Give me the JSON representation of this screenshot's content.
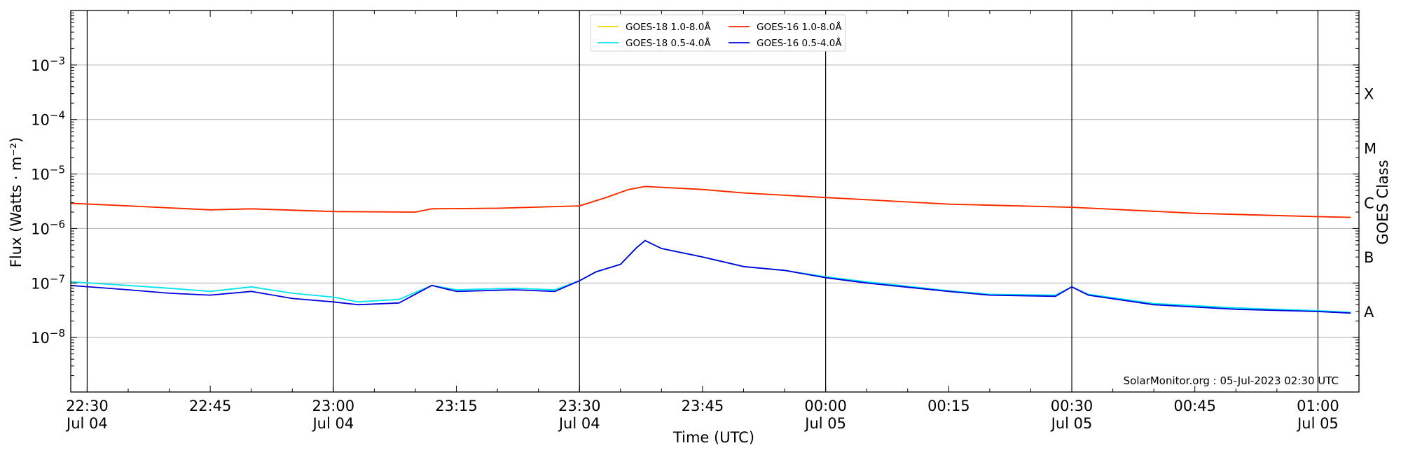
{
  "chart_data": {
    "type": "line",
    "xlabel": "Time (UTC)",
    "ylabel": "Flux (Watts · m⁻²)",
    "y2label": "GOES Class",
    "yscale": "log",
    "ylim": [
      1e-09,
      0.01
    ],
    "xlim_minutes_since_2230_jul04": [
      -2,
      155
    ],
    "ytick_labels": [
      {
        "exp": -3,
        "label_base": "10",
        "label_exp": "−3"
      },
      {
        "exp": -4,
        "label_base": "10",
        "label_exp": "−4"
      },
      {
        "exp": -5,
        "label_base": "10",
        "label_exp": "−5"
      },
      {
        "exp": -6,
        "label_base": "10",
        "label_exp": "−6"
      },
      {
        "exp": -7,
        "label_base": "10",
        "label_exp": "−7"
      },
      {
        "exp": -8,
        "label_base": "10",
        "label_exp": "−8"
      }
    ],
    "xtick_labels": [
      {
        "t": "2023-07-04 22:30",
        "time": "22:30",
        "date": "Jul 04"
      },
      {
        "t": "2023-07-04 22:45",
        "time": "22:45",
        "date": ""
      },
      {
        "t": "2023-07-04 23:00",
        "time": "23:00",
        "date": "Jul 04"
      },
      {
        "t": "2023-07-04 23:15",
        "time": "23:15",
        "date": ""
      },
      {
        "t": "2023-07-04 23:30",
        "time": "23:30",
        "date": "Jul 04"
      },
      {
        "t": "2023-07-04 23:45",
        "time": "23:45",
        "date": ""
      },
      {
        "t": "2023-07-05 00:00",
        "time": "00:00",
        "date": "Jul 05"
      },
      {
        "t": "2023-07-05 00:15",
        "time": "00:15",
        "date": ""
      },
      {
        "t": "2023-07-05 00:30",
        "time": "00:30",
        "date": "Jul 05"
      },
      {
        "t": "2023-07-05 00:45",
        "time": "00:45",
        "date": ""
      },
      {
        "t": "2023-07-05 01:00",
        "time": "01:00",
        "date": "Jul 05"
      }
    ],
    "vertical_lines": [
      "2023-07-04 22:30",
      "2023-07-04 23:00",
      "2023-07-04 23:30",
      "2023-07-05 00:00",
      "2023-07-05 00:30",
      "2023-07-05 01:00"
    ],
    "goes_classes": [
      {
        "label": "X",
        "flux": 0.0003
      },
      {
        "label": "M",
        "flux": 3e-05
      },
      {
        "label": "C",
        "flux": 3e-06
      },
      {
        "label": "B",
        "flux": 3e-07
      },
      {
        "label": "A",
        "flux": 3e-08
      }
    ],
    "annotation": "SolarMonitor.org : 05-Jul-2023 02:30 UTC",
    "legend_position": "top-center",
    "legend": [
      {
        "name": "GOES-18 1.0-8.0Å",
        "color": "#ffd700"
      },
      {
        "name": "GOES-18 0.5-4.0Å",
        "color": "#00e5ee"
      },
      {
        "name": "GOES-16 1.0-8.0Å",
        "color": "#ff2200"
      },
      {
        "name": "GOES-16 0.5-4.0Å",
        "color": "#0000dd"
      }
    ],
    "grid": "horizontal at decades",
    "series": [
      {
        "name": "GOES-18 1.0-8.0Å",
        "color": "#ffd700",
        "x": [
          "2023-07-04 22:28",
          "2023-07-04 22:35",
          "2023-07-04 22:45",
          "2023-07-04 22:50",
          "2023-07-04 23:00",
          "2023-07-04 23:10",
          "2023-07-04 23:12",
          "2023-07-04 23:20",
          "2023-07-04 23:30",
          "2023-07-04 23:33",
          "2023-07-04 23:36",
          "2023-07-04 23:38",
          "2023-07-04 23:45",
          "2023-07-04 23:50",
          "2023-07-05 00:00",
          "2023-07-05 00:15",
          "2023-07-05 00:30",
          "2023-07-05 00:45",
          "2023-07-05 01:00",
          "2023-07-05 01:04"
        ],
        "y": [
          2.9e-06,
          2.6e-06,
          2.2e-06,
          2.3e-06,
          2.05e-06,
          2e-06,
          2.3e-06,
          2.35e-06,
          2.6e-06,
          3.6e-06,
          5.2e-06,
          5.9e-06,
          5.2e-06,
          4.5e-06,
          3.7e-06,
          2.8e-06,
          2.45e-06,
          1.9e-06,
          1.65e-06,
          1.6e-06
        ]
      },
      {
        "name": "GOES-16 1.0-8.0Å",
        "color": "#ff2200",
        "x": [
          "2023-07-04 22:28",
          "2023-07-04 22:35",
          "2023-07-04 22:45",
          "2023-07-04 22:50",
          "2023-07-04 23:00",
          "2023-07-04 23:10",
          "2023-07-04 23:12",
          "2023-07-04 23:20",
          "2023-07-04 23:30",
          "2023-07-04 23:33",
          "2023-07-04 23:36",
          "2023-07-04 23:38",
          "2023-07-04 23:45",
          "2023-07-04 23:50",
          "2023-07-05 00:00",
          "2023-07-05 00:15",
          "2023-07-05 00:30",
          "2023-07-05 00:45",
          "2023-07-05 01:00",
          "2023-07-05 01:04"
        ],
        "y": [
          2.9e-06,
          2.6e-06,
          2.2e-06,
          2.3e-06,
          2.05e-06,
          2e-06,
          2.3e-06,
          2.35e-06,
          2.6e-06,
          3.6e-06,
          5.2e-06,
          5.9e-06,
          5.2e-06,
          4.5e-06,
          3.7e-06,
          2.8e-06,
          2.45e-06,
          1.9e-06,
          1.65e-06,
          1.6e-06
        ]
      },
      {
        "name": "GOES-18 0.5-4.0Å",
        "color": "#00e5ee",
        "x": [
          "2023-07-04 22:28",
          "2023-07-04 22:35",
          "2023-07-04 22:40",
          "2023-07-04 22:45",
          "2023-07-04 22:50",
          "2023-07-04 22:55",
          "2023-07-04 23:00",
          "2023-07-04 23:03",
          "2023-07-04 23:08",
          "2023-07-04 23:12",
          "2023-07-04 23:15",
          "2023-07-04 23:22",
          "2023-07-04 23:27",
          "2023-07-04 23:30",
          "2023-07-04 23:32",
          "2023-07-04 23:35",
          "2023-07-04 23:37",
          "2023-07-04 23:38",
          "2023-07-04 23:40",
          "2023-07-04 23:45",
          "2023-07-04 23:50",
          "2023-07-04 23:55",
          "2023-07-05 00:00",
          "2023-07-05 00:05",
          "2023-07-05 00:15",
          "2023-07-05 00:20",
          "2023-07-05 00:28",
          "2023-07-05 00:30",
          "2023-07-05 00:32",
          "2023-07-05 00:40",
          "2023-07-05 00:50",
          "2023-07-05 01:00",
          "2023-07-05 01:04"
        ],
        "y": [
          1.05e-07,
          9e-08,
          8e-08,
          7e-08,
          8.5e-08,
          6.5e-08,
          5.5e-08,
          4.5e-08,
          5e-08,
          9e-08,
          7.5e-08,
          8e-08,
          7.5e-08,
          1.1e-07,
          1.6e-07,
          2.2e-07,
          4.5e-07,
          6e-07,
          4.3e-07,
          3e-07,
          2e-07,
          1.7e-07,
          1.3e-07,
          1.05e-07,
          7.2e-08,
          6.2e-08,
          6e-08,
          8.5e-08,
          6.2e-08,
          4.2e-08,
          3.5e-08,
          3.1e-08,
          2.9e-08
        ]
      },
      {
        "name": "GOES-16 0.5-4.0Å",
        "color": "#0000dd",
        "x": [
          "2023-07-04 22:28",
          "2023-07-04 22:35",
          "2023-07-04 22:40",
          "2023-07-04 22:45",
          "2023-07-04 22:50",
          "2023-07-04 22:55",
          "2023-07-04 23:00",
          "2023-07-04 23:03",
          "2023-07-04 23:08",
          "2023-07-04 23:12",
          "2023-07-04 23:15",
          "2023-07-04 23:22",
          "2023-07-04 23:27",
          "2023-07-04 23:30",
          "2023-07-04 23:32",
          "2023-07-04 23:35",
          "2023-07-04 23:37",
          "2023-07-04 23:38",
          "2023-07-04 23:40",
          "2023-07-04 23:45",
          "2023-07-04 23:50",
          "2023-07-04 23:55",
          "2023-07-05 00:00",
          "2023-07-05 00:05",
          "2023-07-05 00:15",
          "2023-07-05 00:20",
          "2023-07-05 00:28",
          "2023-07-05 00:30",
          "2023-07-05 00:32",
          "2023-07-05 00:40",
          "2023-07-05 00:50",
          "2023-07-05 01:00",
          "2023-07-05 01:04"
        ],
        "y": [
          9e-08,
          7.5e-08,
          6.5e-08,
          6e-08,
          7e-08,
          5.2e-08,
          4.5e-08,
          4e-08,
          4.3e-08,
          9e-08,
          7e-08,
          7.5e-08,
          7e-08,
          1.1e-07,
          1.6e-07,
          2.2e-07,
          4.5e-07,
          6e-07,
          4.3e-07,
          3e-07,
          2e-07,
          1.7e-07,
          1.25e-07,
          1e-07,
          7e-08,
          6e-08,
          5.7e-08,
          8.5e-08,
          6e-08,
          4e-08,
          3.3e-08,
          3e-08,
          2.8e-08
        ]
      }
    ]
  }
}
